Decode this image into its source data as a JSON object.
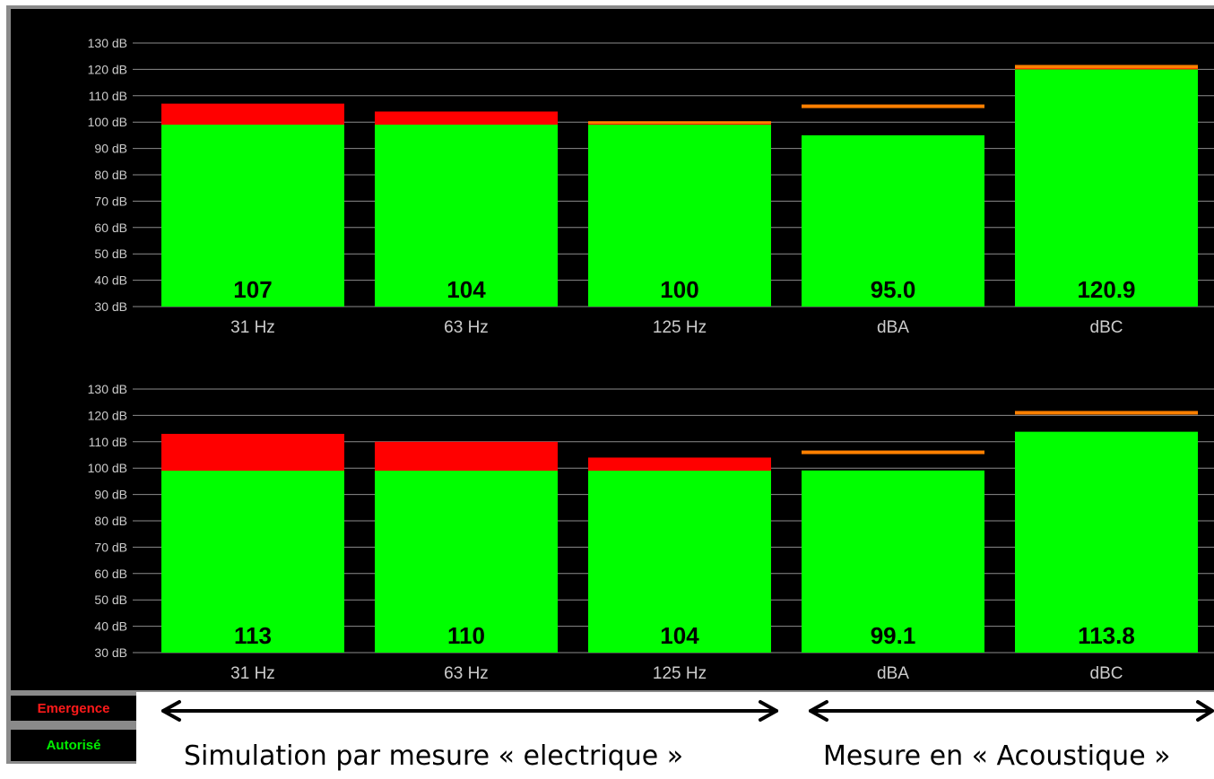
{
  "colors": {
    "emergence": "#ff0000",
    "autorise": "#00ff00",
    "limit": "#ff8000",
    "background": "#000000",
    "grid": "#8c8c8c",
    "text": "#cccccc"
  },
  "legend": {
    "emergence": "Emergence",
    "autorise": "Autorisé"
  },
  "captions": {
    "left": "Simulation par mesure « electrique »",
    "right": "Mesure en « Acoustique »"
  },
  "chart_data": [
    {
      "type": "bar",
      "y_unit": "dB",
      "ylim": [
        30,
        130
      ],
      "yticks": [
        "30 dB",
        "40 dB",
        "50 dB",
        "60 dB",
        "70 dB",
        "80 dB",
        "90 dB",
        "100 dB",
        "110 dB",
        "120 dB",
        "130 dB"
      ],
      "grid": true,
      "categories": [
        "31 Hz",
        "63 Hz",
        "125 Hz",
        "dBA",
        "dBC"
      ],
      "series": [
        {
          "name": "Autorisé",
          "values": [
            99,
            99,
            99,
            95.0,
            120
          ]
        },
        {
          "name": "Emergence",
          "values": [
            107,
            104,
            100,
            null,
            120.9
          ]
        }
      ],
      "limit_lines": [
        null,
        null,
        null,
        106,
        121
      ],
      "value_labels": [
        "107",
        "104",
        "100",
        "95.0",
        "120.9"
      ]
    },
    {
      "type": "bar",
      "y_unit": "dB",
      "ylim": [
        30,
        130
      ],
      "yticks": [
        "30 dB",
        "40 dB",
        "50 dB",
        "60 dB",
        "70 dB",
        "80 dB",
        "90 dB",
        "100 dB",
        "110 dB",
        "120 dB",
        "130 dB"
      ],
      "grid": true,
      "categories": [
        "31 Hz",
        "63 Hz",
        "125 Hz",
        "dBA",
        "dBC"
      ],
      "series": [
        {
          "name": "Autorisé",
          "values": [
            99,
            99,
            99,
            99.1,
            113.8
          ]
        },
        {
          "name": "Emergence",
          "values": [
            113,
            110,
            104,
            null,
            null
          ]
        }
      ],
      "limit_lines": [
        null,
        null,
        null,
        106,
        121
      ],
      "value_labels": [
        "113",
        "110",
        "104",
        "99.1",
        "113.8"
      ]
    }
  ]
}
